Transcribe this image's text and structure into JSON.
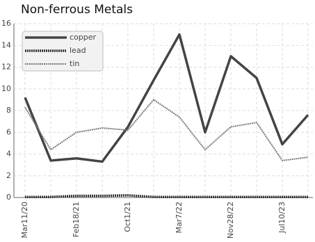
{
  "chart_data": {
    "type": "line",
    "title": "Non-ferrous Metals",
    "categories": [
      "Mar11/20",
      null,
      "Feb18/21",
      null,
      "Oct1/21",
      null,
      "Mar7/22",
      null,
      "Nov28/22",
      null,
      "Jul10/23",
      null
    ],
    "series": [
      {
        "name": "copper",
        "color": "#444444",
        "values": [
          9.2,
          3.4,
          3.6,
          3.3,
          6.5,
          10.8,
          15,
          6,
          13,
          11,
          4.9,
          7.6
        ]
      },
      {
        "name": "lead",
        "color": "#333333",
        "values": [
          0.05,
          0.05,
          0.15,
          0.15,
          0.2,
          0.05,
          0.05,
          0.05,
          0.05,
          0.05,
          0.05,
          0.05
        ]
      },
      {
        "name": "tin",
        "color": "#777777",
        "values": [
          8.3,
          4.4,
          6.0,
          6.4,
          6.2,
          9.0,
          7.4,
          4.4,
          6.5,
          6.9,
          3.4,
          3.7
        ]
      }
    ],
    "ylim": [
      0,
      16
    ],
    "yticks": [
      0,
      2,
      4,
      6,
      8,
      10,
      12,
      14,
      16
    ],
    "grid": true,
    "legend": "top-left"
  }
}
